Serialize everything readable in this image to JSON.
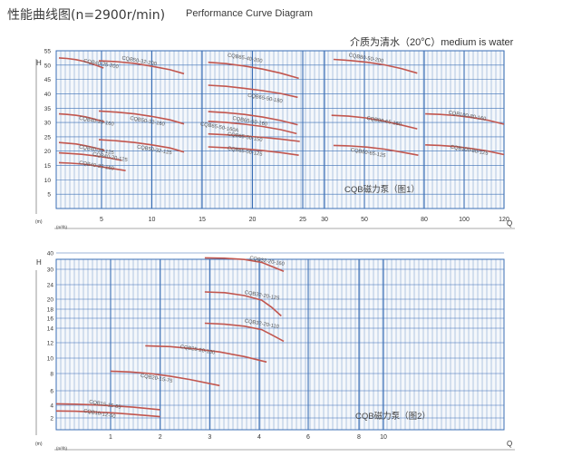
{
  "header": {
    "title_cn": "性能曲线图(n=2900r/min)",
    "title_en": "Performance Curve Diagram",
    "medium": "介质为清水（20℃）medium is water"
  },
  "colors": {
    "grid": "#3b6fb5",
    "curve": "#c2564e",
    "label": "#5a5a5a"
  },
  "chart_data": [
    {
      "type": "line",
      "caption": "CQB磁力泵（图1）",
      "ylabel": "H",
      "y_unit": "(m)",
      "xlabel": "Q",
      "x_unit": "(m³/h)",
      "ylim": [
        0,
        55
      ],
      "x_tick_labels": [
        "5",
        "10",
        "15",
        "20",
        "25",
        "30",
        "50",
        "80",
        "100",
        "120"
      ],
      "y_tick_labels": [
        "5",
        "10",
        "15",
        "20",
        "25",
        "30",
        "35",
        "40",
        "45",
        "50",
        "55"
      ],
      "series": [
        {
          "name": "CQB40-25-200",
          "label_q": 3,
          "label_h": 51,
          "points": [
            [
              0.3,
              52.5
            ],
            [
              1.2,
              52.3
            ],
            [
              2.2,
              51.9
            ],
            [
              3.2,
              51.2
            ],
            [
              4.2,
              50.2
            ],
            [
              5.2,
              49
            ]
          ]
        },
        {
          "name": "CQB50-32-200",
          "label_q": 7,
          "label_h": 52,
          "points": [
            [
              4.7,
              51.5
            ],
            [
              6.5,
              51.2
            ],
            [
              8.3,
              50.6
            ],
            [
              10,
              49.6
            ],
            [
              11.8,
              48.4
            ],
            [
              13.2,
              47
            ]
          ]
        },
        {
          "name": "CQB65-40-200",
          "label_q": 17.5,
          "label_h": 53,
          "points": [
            [
              15.6,
              51
            ],
            [
              17.4,
              50.5
            ],
            [
              19.2,
              49.7
            ],
            [
              21,
              48.6
            ],
            [
              22.8,
              47.2
            ],
            [
              24.6,
              45.4
            ]
          ]
        },
        {
          "name": "CQB80-50-200",
          "label_q": 42,
          "label_h": 53,
          "points": [
            [
              34.5,
              52
            ],
            [
              43,
              51.6
            ],
            [
              51.5,
              51
            ],
            [
              60,
              50.1
            ],
            [
              68.5,
              48.8
            ],
            [
              76.5,
              47.2
            ]
          ]
        },
        {
          "name": "CQB65-50-180",
          "label_q": 19.5,
          "label_h": 39,
          "points": [
            [
              15.6,
              43
            ],
            [
              17.4,
              42.6
            ],
            [
              19.2,
              41.9
            ],
            [
              21,
              41.1
            ],
            [
              22.8,
              40.1
            ],
            [
              24.5,
              38.8
            ]
          ]
        },
        {
          "name": "CQB40-25-160",
          "label_q": 2.5,
          "label_h": 31,
          "points": [
            [
              0.3,
              33
            ],
            [
              1.2,
              32.8
            ],
            [
              2.2,
              32.5
            ],
            [
              3.2,
              32
            ],
            [
              4.2,
              31.2
            ],
            [
              5.3,
              30.2
            ]
          ]
        },
        {
          "name": "CQB50-32-160",
          "label_q": 7.8,
          "label_h": 31,
          "points": [
            [
              4.7,
              34
            ],
            [
              6.5,
              33.6
            ],
            [
              8.3,
              33
            ],
            [
              10,
              32.1
            ],
            [
              11.8,
              30.9
            ],
            [
              13.2,
              29.5
            ]
          ]
        },
        {
          "name": "CQB65-50-160A",
          "label_q": 14.8,
          "label_h": 29,
          "points": [
            [
              15.6,
              30.4
            ],
            [
              17.4,
              30
            ],
            [
              19.2,
              29.4
            ],
            [
              21,
              28.6
            ],
            [
              22.8,
              27.5
            ],
            [
              24.4,
              26.1
            ]
          ]
        },
        {
          "name": "CQB65-50-160",
          "label_q": 18,
          "label_h": 31,
          "points": [
            [
              15.6,
              33.8
            ],
            [
              17.4,
              33.4
            ],
            [
              19.2,
              32.8
            ],
            [
              21,
              31.9
            ],
            [
              22.8,
              30.7
            ],
            [
              24.5,
              29.2
            ]
          ]
        },
        {
          "name": "CQB80-65-160",
          "label_q": 51,
          "label_h": 31,
          "points": [
            [
              33.5,
              32.5
            ],
            [
              42,
              32.2
            ],
            [
              50.5,
              31.6
            ],
            [
              59,
              30.6
            ],
            [
              67.5,
              29.3
            ],
            [
              76.5,
              27.8
            ]
          ]
        },
        {
          "name": "CQB100-80-160",
          "label_q": 92,
          "label_h": 33,
          "points": [
            [
              80.5,
              33
            ],
            [
              88,
              32.8
            ],
            [
              96,
              32.4
            ],
            [
              104,
              31.7
            ],
            [
              112,
              30.8
            ],
            [
              120,
              29.4
            ]
          ]
        },
        {
          "name": "CQB65-50-150",
          "label_q": 17.5,
          "label_h": 25.5,
          "points": [
            [
              15.6,
              26
            ],
            [
              17.4,
              25.7
            ],
            [
              19.2,
              25.3
            ],
            [
              21,
              24.8
            ],
            [
              22.8,
              24.2
            ],
            [
              24.7,
              23.4
            ]
          ]
        },
        {
          "name": "CQB40-25-125",
          "label_q": 2.5,
          "label_h": 21,
          "points": [
            [
              0.3,
              23
            ],
            [
              1.2,
              22.8
            ],
            [
              2.2,
              22.5
            ],
            [
              3.2,
              21.9
            ],
            [
              4.2,
              21.2
            ],
            [
              5.3,
              20.3
            ]
          ]
        },
        {
          "name": "CQB50-32-125",
          "label_q": 8.5,
          "label_h": 21,
          "points": [
            [
              4.7,
              24
            ],
            [
              6.5,
              23.6
            ],
            [
              8.3,
              23
            ],
            [
              10,
              22.2
            ],
            [
              11.8,
              21.1
            ],
            [
              13.2,
              19.7
            ]
          ]
        },
        {
          "name": "CQB40-20-125",
          "label_q": 4,
          "label_h": 18.5,
          "points": [
            [
              0.3,
              19.4
            ],
            [
              1.5,
              19.2
            ],
            [
              2.8,
              18.9
            ],
            [
              4.2,
              18.4
            ],
            [
              5.6,
              17.7
            ],
            [
              7,
              16.8
            ]
          ]
        },
        {
          "name": "CQB65-50-125",
          "label_q": 17.5,
          "label_h": 20.5,
          "points": [
            [
              15.6,
              21.5
            ],
            [
              17.4,
              21.2
            ],
            [
              19.2,
              20.8
            ],
            [
              21,
              20.2
            ],
            [
              22.8,
              19.5
            ],
            [
              24.6,
              18.6
            ]
          ]
        },
        {
          "name": "CQB80-65-125",
          "label_q": 43,
          "label_h": 20,
          "points": [
            [
              34.5,
              22
            ],
            [
              43,
              21.8
            ],
            [
              51.5,
              21.4
            ],
            [
              60,
              20.7
            ],
            [
              68.5,
              19.7
            ],
            [
              77,
              18.6
            ]
          ]
        },
        {
          "name": "CQB100-80-125",
          "label_q": 93,
          "label_h": 21,
          "points": [
            [
              80.5,
              22.2
            ],
            [
              88,
              22
            ],
            [
              96,
              21.6
            ],
            [
              104,
              20.9
            ],
            [
              112,
              20
            ],
            [
              120,
              18.8
            ]
          ]
        },
        {
          "name": "CQB40-25-150",
          "label_q": 2.5,
          "label_h": 15.5,
          "points": [
            [
              0.3,
              16
            ],
            [
              1.6,
              15.8
            ],
            [
              3,
              15.5
            ],
            [
              4.4,
              14.9
            ],
            [
              5.8,
              14.1
            ],
            [
              7.4,
              13.2
            ]
          ]
        }
      ]
    },
    {
      "type": "line",
      "caption": "CQB磁力泵（图2）",
      "ylabel": "H",
      "y_unit": "(m)",
      "xlabel": "Q",
      "x_unit": "(m³/h)",
      "x_tick_labels": [
        "1",
        "2",
        "3",
        "4",
        "6",
        "8",
        "10"
      ],
      "y_tick_labels": [
        "2",
        "4",
        "6",
        "8",
        "10",
        "12",
        "14",
        "16",
        "18",
        "20",
        "24",
        "30",
        "40"
      ],
      "series": [
        {
          "name": "CQB32-20-160",
          "label_q": 3.8,
          "label_h": 36,
          "points": [
            [
              2.9,
              37
            ],
            [
              3.3,
              36.8
            ],
            [
              3.7,
              36
            ],
            [
              4.1,
              34.2
            ],
            [
              4.5,
              31.8
            ],
            [
              5.0,
              29.2
            ]
          ]
        },
        {
          "name": "CQB32-20-125",
          "label_q": 3.7,
          "label_h": 21.5,
          "points": [
            [
              2.9,
              22
            ],
            [
              3.3,
              21.8
            ],
            [
              3.7,
              21
            ],
            [
              4.1,
              19.8
            ],
            [
              4.5,
              18.4
            ],
            [
              4.9,
              16.5
            ]
          ]
        },
        {
          "name": "CQB32-20-110",
          "label_q": 3.7,
          "label_h": 15.2,
          "points": [
            [
              2.9,
              15
            ],
            [
              3.3,
              14.8
            ],
            [
              3.7,
              14.4
            ],
            [
              4.1,
              13.8
            ],
            [
              4.5,
              13.1
            ],
            [
              5.0,
              12.2
            ]
          ]
        },
        {
          "name": "CQB25-20-100",
          "label_q": 2.4,
          "label_h": 11.3,
          "points": [
            [
              1.7,
              11.6
            ],
            [
              2.2,
              11.5
            ],
            [
              2.7,
              11.2
            ],
            [
              3.2,
              10.8
            ],
            [
              3.7,
              10.2
            ],
            [
              4.3,
              9.5
            ]
          ]
        },
        {
          "name": "CQB20-15-75",
          "label_q": 1.6,
          "label_h": 7.6,
          "points": [
            [
              1.0,
              8.3
            ],
            [
              1.4,
              8.2
            ],
            [
              1.8,
              8.0
            ],
            [
              2.2,
              7.7
            ],
            [
              2.6,
              7.3
            ],
            [
              3.2,
              6.6
            ]
          ]
        },
        {
          "name": "CQB15-15-65",
          "label_q": 0.6,
          "label_h": 4.3,
          "points": [
            [
              0.0,
              4.2
            ],
            [
              0.35,
              4.15
            ],
            [
              0.7,
              4.05
            ],
            [
              1.05,
              3.9
            ],
            [
              1.45,
              3.7
            ],
            [
              2.0,
              3.3
            ]
          ]
        },
        {
          "name": "CQB16-12-50",
          "label_q": 0.5,
          "label_h": 2.9,
          "points": [
            [
              0.0,
              3.1
            ],
            [
              0.35,
              3.05
            ],
            [
              0.7,
              2.95
            ],
            [
              1.05,
              2.8
            ],
            [
              1.45,
              2.55
            ],
            [
              2.0,
              2.2
            ]
          ]
        }
      ]
    }
  ]
}
